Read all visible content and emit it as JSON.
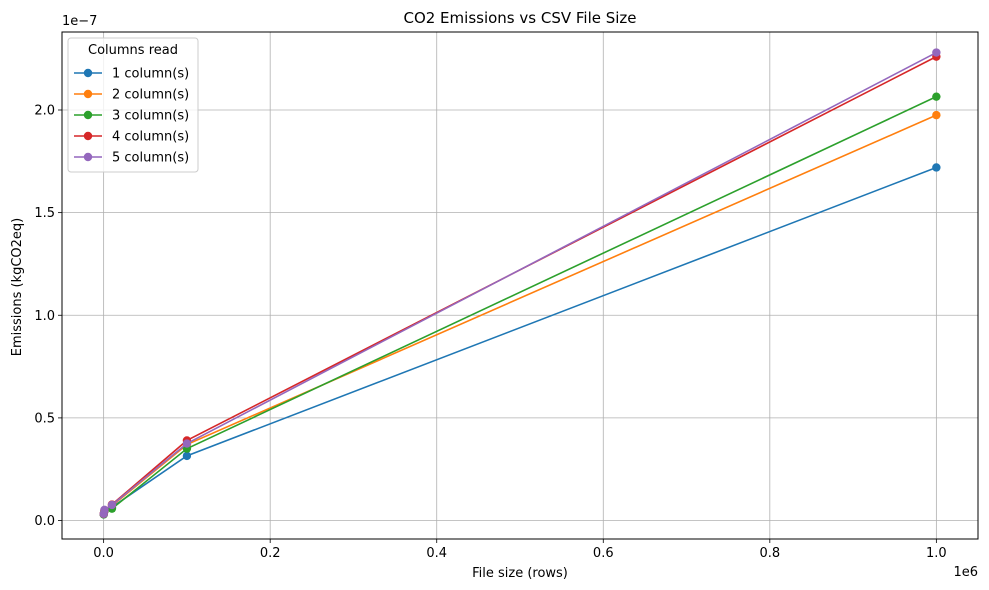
{
  "chart_data": {
    "type": "line",
    "title": "CO2 Emissions vs CSV File Size",
    "xlabel": "File size (rows)",
    "ylabel": "Emissions (kgCO2eq)",
    "x_offset_label": "1e6",
    "y_offset_label": "1e−7",
    "xlim": [
      -50000,
      1050000
    ],
    "ylim": [
      -9e-09,
      2.38e-07
    ],
    "x_ticks": [
      0,
      200000,
      400000,
      600000,
      800000,
      1000000
    ],
    "x_tick_labels": [
      "0.0",
      "0.2",
      "0.4",
      "0.6",
      "0.8",
      "1.0"
    ],
    "y_ticks": [
      0,
      5e-08,
      1e-07,
      1.5e-07,
      2e-07
    ],
    "y_tick_labels": [
      "0.0",
      "0.5",
      "1.0",
      "1.5",
      "2.0"
    ],
    "grid": true,
    "legend_title": "Columns read",
    "legend_position": "top-left",
    "x": [
      100,
      1000,
      10000,
      100000,
      1000000
    ],
    "series": [
      {
        "name": "1 column(s)",
        "color": "#1f77b4",
        "values": [
          3e-09,
          4.5e-09,
          6.5e-09,
          3.15e-08,
          1.72e-07
        ]
      },
      {
        "name": "2 column(s)",
        "color": "#ff7f0e",
        "values": [
          3.2e-09,
          4.8e-09,
          7.2e-09,
          3.7e-08,
          1.975e-07
        ]
      },
      {
        "name": "3 column(s)",
        "color": "#2ca02c",
        "values": [
          3e-09,
          4.6e-09,
          5.8e-09,
          3.5e-08,
          2.065e-07
        ]
      },
      {
        "name": "4 column(s)",
        "color": "#d62728",
        "values": [
          3.2e-09,
          5e-09,
          7.8e-09,
          3.9e-08,
          2.26e-07
        ]
      },
      {
        "name": "5 column(s)",
        "color": "#9467bd",
        "values": [
          3.3e-09,
          5.2e-09,
          7.6e-09,
          3.75e-08,
          2.28e-07
        ]
      }
    ]
  }
}
